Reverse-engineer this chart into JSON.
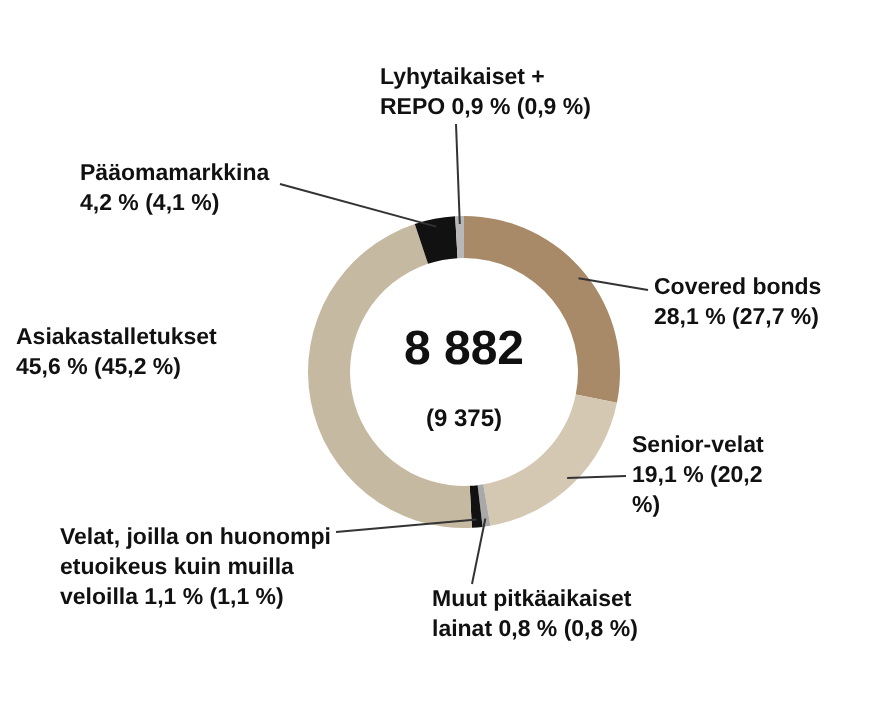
{
  "chart_data": {
    "type": "donut",
    "categories": [
      "Covered bonds",
      "Senior-velat",
      "Muut pitkäaikaiset lainat",
      "Velat, joilla on huonompi etuoikeus kuin muilla veloilla",
      "Asiakastalletukset",
      "Pääomamarkkina",
      "Lyhytaikaiset + REPO"
    ],
    "values": [
      28.1,
      19.1,
      0.8,
      1.1,
      45.6,
      4.2,
      0.9
    ],
    "value_labels": [
      "28,1 % (27,7 %)",
      "19,1 % (20,2 %)",
      "0,8 % (0,8 %)",
      "1,1 % (1,1 %)",
      "45,6 % (45,2 %)",
      "4,2 % (4,1 %)",
      "0,9 % (0,9 %)"
    ],
    "colors": [
      "#a88a68",
      "#d4c8b3",
      "#a9a9a9",
      "#111111",
      "#c5b9a1",
      "#111111",
      "#b8b8b8"
    ],
    "annotations": [
      "8 882",
      "(9 375)"
    ]
  }
}
